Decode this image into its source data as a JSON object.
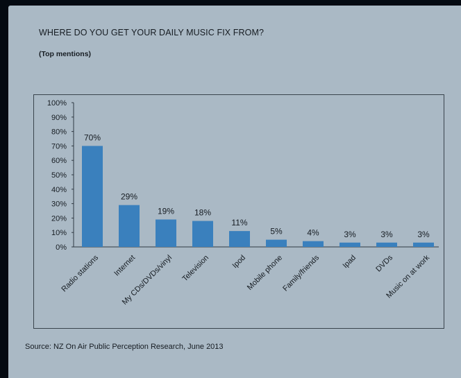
{
  "title": "WHERE DO YOU GET YOUR DAILY MUSIC FIX FROM?",
  "subtitle": "(Top mentions)",
  "source": "Source:  NZ On Air Public Perception Research, June 2013",
  "colors": {
    "bar": "#3a80bd",
    "paper": "#aab9c5",
    "text": "#161c22"
  },
  "chart_data": {
    "type": "bar",
    "title": "",
    "xlabel": "",
    "ylabel": "",
    "categories": [
      "Radio stations",
      "Internet",
      "My CDs/DVDs/vinyl",
      "Television",
      "Ipod",
      "Mobile phone",
      "Family/friends",
      "Ipad",
      "DVDs",
      "Music on at work"
    ],
    "values": [
      70,
      29,
      19,
      18,
      11,
      5,
      4,
      3,
      3,
      3
    ],
    "data_labels": [
      "70%",
      "29%",
      "19%",
      "18%",
      "11%",
      "5%",
      "4%",
      "3%",
      "3%",
      "3%"
    ],
    "ylim": [
      0,
      100
    ],
    "yticks": [
      0,
      10,
      20,
      30,
      40,
      50,
      60,
      70,
      80,
      90,
      100
    ],
    "ytick_labels": [
      "0%",
      "10%",
      "20%",
      "30%",
      "40%",
      "50%",
      "60%",
      "70%",
      "80%",
      "90%",
      "100%"
    ],
    "grid": false,
    "legend": "none"
  }
}
